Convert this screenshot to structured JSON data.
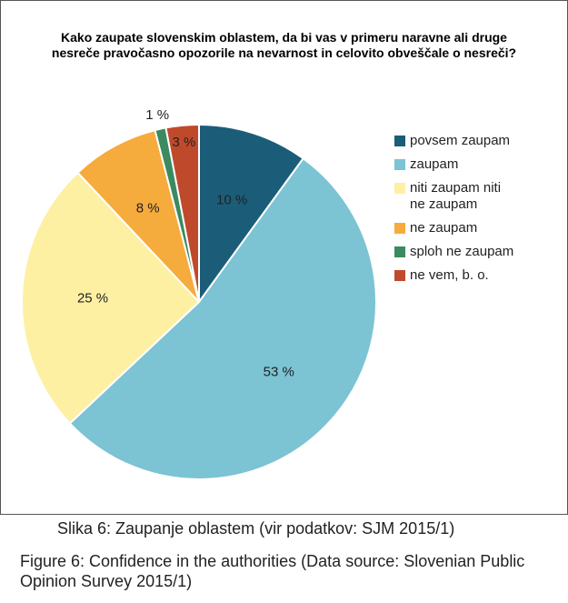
{
  "chart_data": {
    "type": "pie",
    "title": "Kako zaupate slovenskim oblastem, da bi vas v primeru naravne ali druge nesreče pravočasno opozorile na nevarnost in celovito obveščale o nesreči?",
    "categories": [
      "povsem zaupam",
      "zaupam",
      "niti zaupam niti ne zaupam",
      "ne zaupam",
      "sploh ne zaupam",
      "ne vem, b. o."
    ],
    "values": [
      10,
      53,
      25,
      8,
      1,
      3
    ],
    "value_labels": [
      "10 %",
      "53 %",
      "25 %",
      "8 %",
      "1 %",
      "3 %"
    ],
    "colors": [
      "#1b5d78",
      "#7cc3d3",
      "#fdf0a3",
      "#f6ab3d",
      "#3b8a60",
      "#bf4a2b"
    ],
    "legend": "right"
  },
  "caption": {
    "slovene": "Slika 6: Zaupanje oblastem (vir podatkov: SJM 2015/1)",
    "english": "Figure 6: Confidence in the authorities (Data source: Slovenian Public Opinion Survey 2015/1)"
  }
}
